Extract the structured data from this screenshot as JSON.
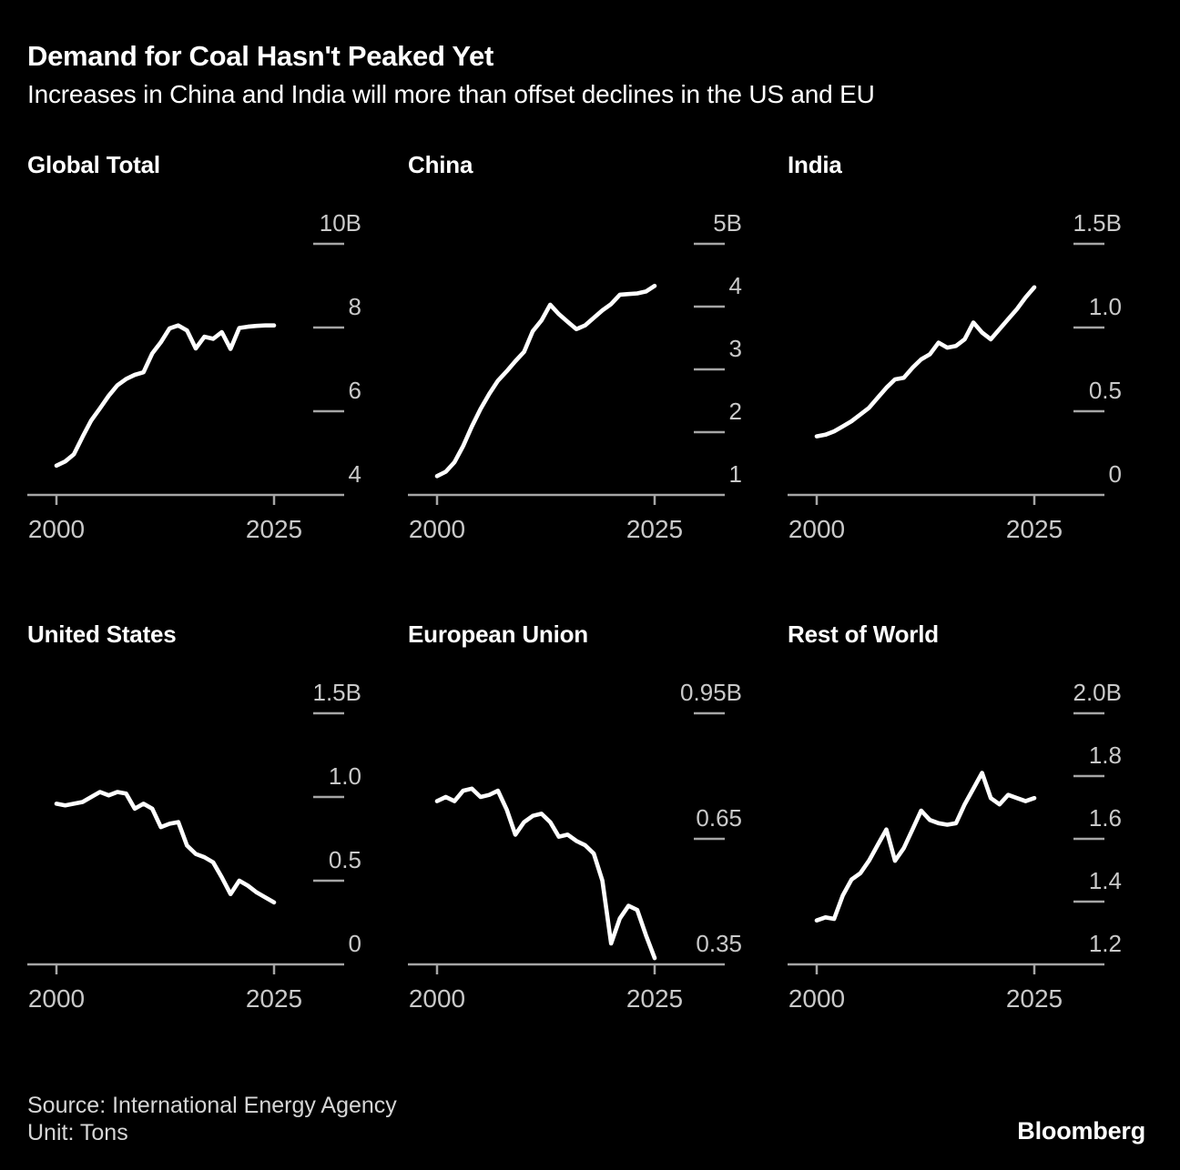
{
  "header": {
    "title": "Demand for Coal Hasn't Peaked Yet",
    "subtitle": "Increases in China and India will more than offset declines in the US and EU"
  },
  "footer": {
    "source": "Source: International Energy Agency",
    "unit": "Unit: Tons",
    "brand": "Bloomberg"
  },
  "colors": {
    "background": "#000000",
    "line": "#ffffff",
    "axis": "#a6a6a6",
    "tick_label": "#c9c9c9",
    "text": "#ffffff"
  },
  "chart_data": {
    "type": "line",
    "layout": "small-multiples-2x3",
    "unit": "tons",
    "x": [
      2000,
      2001,
      2002,
      2003,
      2004,
      2005,
      2006,
      2007,
      2008,
      2009,
      2010,
      2011,
      2012,
      2013,
      2014,
      2015,
      2016,
      2017,
      2018,
      2019,
      2020,
      2021,
      2022,
      2023,
      2024,
      2025
    ],
    "x_tick_labels": [
      "2000",
      "2025"
    ],
    "panels": [
      {
        "title": "Global Total",
        "y_tick_labels": [
          "10B",
          "8",
          "6",
          "4"
        ],
        "y_tick_values": [
          10,
          8,
          6,
          4
        ],
        "ylim": [
          4,
          10
        ],
        "values": [
          4.7,
          4.8,
          4.97,
          5.39,
          5.78,
          6.07,
          6.37,
          6.62,
          6.77,
          6.87,
          6.93,
          7.38,
          7.65,
          7.98,
          8.05,
          7.93,
          7.5,
          7.78,
          7.73,
          7.89,
          7.49,
          7.99,
          8.02,
          8.04,
          8.05,
          8.05
        ]
      },
      {
        "title": "China",
        "y_tick_labels": [
          "5B",
          "4",
          "3",
          "2",
          "1"
        ],
        "y_tick_values": [
          5,
          4,
          3,
          2,
          1
        ],
        "ylim": [
          1,
          5
        ],
        "values": [
          1.3,
          1.37,
          1.52,
          1.78,
          2.09,
          2.37,
          2.61,
          2.82,
          2.97,
          3.13,
          3.28,
          3.61,
          3.78,
          4.03,
          3.88,
          3.76,
          3.64,
          3.7,
          3.82,
          3.94,
          4.04,
          4.19,
          4.2,
          4.21,
          4.24,
          4.33
        ]
      },
      {
        "title": "India",
        "y_tick_labels": [
          "1.5B",
          "1.0",
          "0.5",
          "0"
        ],
        "y_tick_values": [
          1.5,
          1.0,
          0.5,
          0
        ],
        "ylim": [
          0,
          1.5
        ],
        "values": [
          0.35,
          0.36,
          0.38,
          0.41,
          0.44,
          0.48,
          0.52,
          0.58,
          0.64,
          0.69,
          0.7,
          0.76,
          0.81,
          0.84,
          0.91,
          0.88,
          0.89,
          0.93,
          1.03,
          0.97,
          0.93,
          0.99,
          1.05,
          1.11,
          1.18,
          1.24
        ]
      },
      {
        "title": "United States",
        "y_tick_labels": [
          "1.5B",
          "1.0",
          "0.5",
          "0"
        ],
        "y_tick_values": [
          1.5,
          1.0,
          0.5,
          0
        ],
        "ylim": [
          0,
          1.5
        ],
        "values": [
          0.96,
          0.95,
          0.96,
          0.97,
          1.0,
          1.03,
          1.01,
          1.03,
          1.02,
          0.93,
          0.96,
          0.93,
          0.82,
          0.84,
          0.85,
          0.71,
          0.66,
          0.64,
          0.61,
          0.52,
          0.42,
          0.5,
          0.47,
          0.43,
          0.4,
          0.37
        ]
      },
      {
        "title": "European Union",
        "y_tick_labels": [
          "0.95B",
          "0.65",
          "0.35"
        ],
        "y_tick_values": [
          0.95,
          0.65,
          0.35
        ],
        "ylim": [
          0.35,
          0.95
        ],
        "values": [
          0.74,
          0.75,
          0.74,
          0.765,
          0.77,
          0.75,
          0.755,
          0.765,
          0.72,
          0.66,
          0.69,
          0.705,
          0.71,
          0.69,
          0.655,
          0.66,
          0.645,
          0.635,
          0.615,
          0.55,
          0.4,
          0.46,
          0.49,
          0.48,
          0.42,
          0.365
        ]
      },
      {
        "title": "Rest of World",
        "y_tick_labels": [
          "2.0B",
          "1.8",
          "1.6",
          "1.4",
          "1.2"
        ],
        "y_tick_values": [
          2.0,
          1.8,
          1.6,
          1.4,
          1.2
        ],
        "ylim": [
          1.2,
          2.0
        ],
        "values": [
          1.34,
          1.35,
          1.345,
          1.42,
          1.47,
          1.49,
          1.53,
          1.58,
          1.63,
          1.53,
          1.57,
          1.63,
          1.69,
          1.66,
          1.65,
          1.645,
          1.65,
          1.71,
          1.76,
          1.81,
          1.73,
          1.71,
          1.74,
          1.73,
          1.72,
          1.73
        ]
      }
    ]
  }
}
